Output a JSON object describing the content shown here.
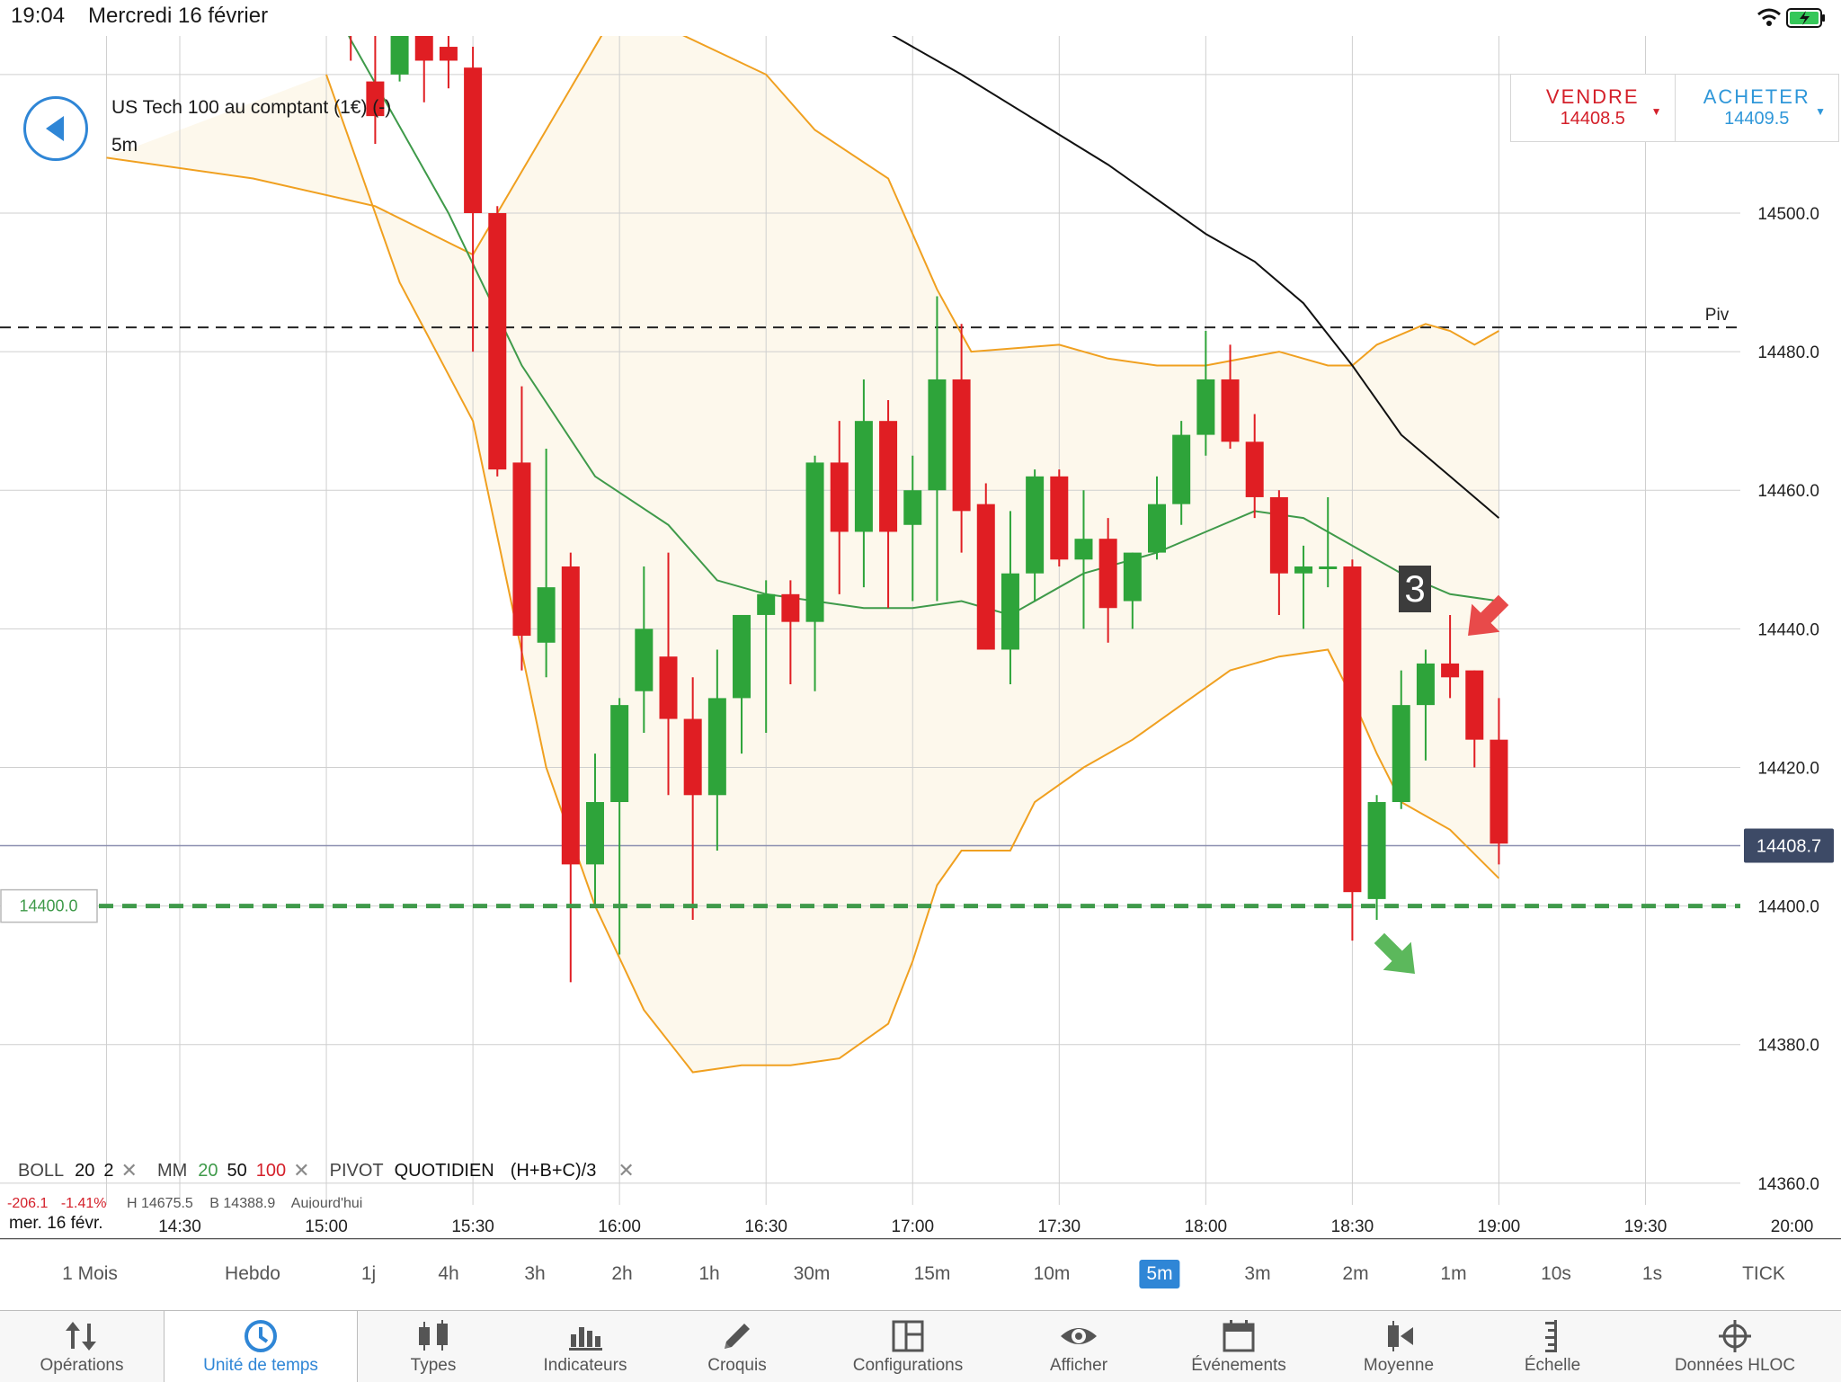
{
  "status": {
    "time": "19:04",
    "date": "Mercredi 16 février"
  },
  "header": {
    "instrument": "US Tech 100 au comptant (1€) (-)",
    "timeframe": "5m"
  },
  "trade": {
    "sell_label": "VENDRE",
    "sell_price": "14408.5",
    "buy_label": "ACHETER",
    "buy_price": "14409.5"
  },
  "chart_data": {
    "type": "candlestick",
    "instrument": "US Tech 100 au comptant (1€) (-)",
    "interval": "5m",
    "ylim": [
      14355,
      14530
    ],
    "y_ticks": [
      14500,
      14480,
      14460,
      14440,
      14420,
      14400,
      14380,
      14360
    ],
    "y_tick_labels": [
      "14500.0",
      "14480.0",
      "14460.0",
      "14440.0",
      "14420.0",
      "14400.0",
      "14380.0",
      "14360.0"
    ],
    "x_ticks": [
      "14:30",
      "15:00",
      "15:30",
      "16:00",
      "16:30",
      "17:00",
      "17:30",
      "18:00",
      "18:30",
      "19:00",
      "19:30",
      "20:00"
    ],
    "x_tick_minutes": [
      870,
      900,
      930,
      960,
      990,
      1020,
      1050,
      1080,
      1110,
      1140,
      1170,
      1200
    ],
    "candles": [
      {
        "t": 905,
        "o": 14530,
        "h": 14535,
        "l": 14522,
        "c": 14526
      },
      {
        "t": 910,
        "o": 14519,
        "h": 14528,
        "l": 14510,
        "c": 14514
      },
      {
        "t": 915,
        "o": 14520,
        "h": 14532,
        "l": 14519,
        "c": 14529
      },
      {
        "t": 920,
        "o": 14530,
        "h": 14534,
        "l": 14516,
        "c": 14522
      },
      {
        "t": 925,
        "o": 14524,
        "h": 14530,
        "l": 14518,
        "c": 14522
      },
      {
        "t": 930,
        "o": 14521,
        "h": 14524,
        "l": 14480,
        "c": 14500
      },
      {
        "t": 935,
        "o": 14500,
        "h": 14501,
        "l": 14462,
        "c": 14463
      },
      {
        "t": 940,
        "o": 14464,
        "h": 14475,
        "l": 14434,
        "c": 14439
      },
      {
        "t": 945,
        "o": 14438,
        "h": 14466,
        "l": 14433,
        "c": 14446
      },
      {
        "t": 950,
        "o": 14449,
        "h": 14451,
        "l": 14389,
        "c": 14406
      },
      {
        "t": 955,
        "o": 14406,
        "h": 14422,
        "l": 14400,
        "c": 14415
      },
      {
        "t": 960,
        "o": 14415,
        "h": 14430,
        "l": 14393,
        "c": 14429
      },
      {
        "t": 965,
        "o": 14431,
        "h": 14449,
        "l": 14425,
        "c": 14440
      },
      {
        "t": 970,
        "o": 14436,
        "h": 14451,
        "l": 14416,
        "c": 14427
      },
      {
        "t": 975,
        "o": 14427,
        "h": 14433,
        "l": 14398,
        "c": 14416
      },
      {
        "t": 980,
        "o": 14416,
        "h": 14437,
        "l": 14408,
        "c": 14430
      },
      {
        "t": 985,
        "o": 14430,
        "h": 14442,
        "l": 14422,
        "c": 14442
      },
      {
        "t": 990,
        "o": 14442,
        "h": 14447,
        "l": 14425,
        "c": 14445
      },
      {
        "t": 995,
        "o": 14445,
        "h": 14447,
        "l": 14432,
        "c": 14441
      },
      {
        "t": 1000,
        "o": 14441,
        "h": 14465,
        "l": 14431,
        "c": 14464
      },
      {
        "t": 1005,
        "o": 14464,
        "h": 14470,
        "l": 14445,
        "c": 14454
      },
      {
        "t": 1010,
        "o": 14454,
        "h": 14476,
        "l": 14446,
        "c": 14470
      },
      {
        "t": 1015,
        "o": 14470,
        "h": 14473,
        "l": 14443,
        "c": 14454
      },
      {
        "t": 1020,
        "o": 14455,
        "h": 14465,
        "l": 14444,
        "c": 14460
      },
      {
        "t": 1025,
        "o": 14460,
        "h": 14488,
        "l": 14444,
        "c": 14476
      },
      {
        "t": 1030,
        "o": 14476,
        "h": 14484,
        "l": 14451,
        "c": 14457
      },
      {
        "t": 1035,
        "o": 14458,
        "h": 14461,
        "l": 14437,
        "c": 14437
      },
      {
        "t": 1040,
        "o": 14437,
        "h": 14457,
        "l": 14432,
        "c": 14448
      },
      {
        "t": 1045,
        "o": 14448,
        "h": 14463,
        "l": 14444,
        "c": 14462
      },
      {
        "t": 1050,
        "o": 14462,
        "h": 14463,
        "l": 14449,
        "c": 14450
      },
      {
        "t": 1055,
        "o": 14450,
        "h": 14460,
        "l": 14440,
        "c": 14453
      },
      {
        "t": 1060,
        "o": 14453,
        "h": 14456,
        "l": 14438,
        "c": 14443
      },
      {
        "t": 1065,
        "o": 14444,
        "h": 14451,
        "l": 14440,
        "c": 14451
      },
      {
        "t": 1070,
        "o": 14451,
        "h": 14462,
        "l": 14450,
        "c": 14458
      },
      {
        "t": 1075,
        "o": 14458,
        "h": 14470,
        "l": 14455,
        "c": 14468
      },
      {
        "t": 1080,
        "o": 14468,
        "h": 14483,
        "l": 14465,
        "c": 14476
      },
      {
        "t": 1085,
        "o": 14476,
        "h": 14481,
        "l": 14466,
        "c": 14467
      },
      {
        "t": 1090,
        "o": 14467,
        "h": 14471,
        "l": 14456,
        "c": 14459
      },
      {
        "t": 1095,
        "o": 14459,
        "h": 14460,
        "l": 14442,
        "c": 14448
      },
      {
        "t": 1100,
        "o": 14448,
        "h": 14452,
        "l": 14440,
        "c": 14449
      },
      {
        "t": 1105,
        "o": 14449,
        "h": 14459,
        "l": 14446,
        "c": 14449
      },
      {
        "t": 1110,
        "o": 14449,
        "h": 14450,
        "l": 14395,
        "c": 14402
      },
      {
        "t": 1115,
        "o": 14401,
        "h": 14416,
        "l": 14398,
        "c": 14415
      },
      {
        "t": 1120,
        "o": 14415,
        "h": 14434,
        "l": 14414,
        "c": 14429
      },
      {
        "t": 1125,
        "o": 14429,
        "h": 14437,
        "l": 14421,
        "c": 14435
      },
      {
        "t": 1130,
        "o": 14435,
        "h": 14442,
        "l": 14430,
        "c": 14433
      },
      {
        "t": 1135,
        "o": 14434,
        "h": 14434,
        "l": 14420,
        "c": 14424
      },
      {
        "t": 1140,
        "o": 14424,
        "h": 14430,
        "l": 14406,
        "c": 14409
      }
    ],
    "bollinger": {
      "period": 20,
      "stddev": 2,
      "upper": [
        [
          855,
          14508
        ],
        [
          885,
          14505
        ],
        [
          910,
          14501
        ],
        [
          930,
          14494
        ],
        [
          960,
          14530
        ],
        [
          990,
          14520
        ],
        [
          1000,
          14512
        ],
        [
          1015,
          14505
        ],
        [
          1025,
          14489
        ],
        [
          1032,
          14480
        ],
        [
          1050,
          14481
        ],
        [
          1060,
          14479
        ],
        [
          1070,
          14478
        ],
        [
          1080,
          14478
        ],
        [
          1095,
          14480
        ],
        [
          1105,
          14478
        ],
        [
          1110,
          14478
        ],
        [
          1115,
          14481
        ],
        [
          1125,
          14484
        ],
        [
          1130,
          14483
        ],
        [
          1135,
          14481
        ],
        [
          1140,
          14483
        ]
      ],
      "middle": [
        [
          895,
          14540
        ],
        [
          905,
          14525
        ],
        [
          925,
          14500
        ],
        [
          940,
          14478
        ],
        [
          955,
          14462
        ],
        [
          970,
          14455
        ],
        [
          980,
          14447
        ],
        [
          990,
          14445
        ],
        [
          1000,
          14444
        ],
        [
          1010,
          14443
        ],
        [
          1020,
          14443
        ],
        [
          1030,
          14444
        ],
        [
          1040,
          14442
        ],
        [
          1055,
          14448
        ],
        [
          1070,
          14451
        ],
        [
          1080,
          14454
        ],
        [
          1090,
          14457
        ],
        [
          1100,
          14456
        ],
        [
          1110,
          14452
        ],
        [
          1120,
          14448
        ],
        [
          1130,
          14445
        ],
        [
          1140,
          14444
        ]
      ],
      "lower": [
        [
          900,
          14520
        ],
        [
          915,
          14490
        ],
        [
          930,
          14470
        ],
        [
          945,
          14420
        ],
        [
          955,
          14400
        ],
        [
          965,
          14385
        ],
        [
          975,
          14376
        ],
        [
          985,
          14377
        ],
        [
          995,
          14377
        ],
        [
          1005,
          14378
        ],
        [
          1015,
          14383
        ],
        [
          1020,
          14392
        ],
        [
          1025,
          14403
        ],
        [
          1030,
          14408
        ],
        [
          1040,
          14408
        ],
        [
          1045,
          14415
        ],
        [
          1055,
          14420
        ],
        [
          1065,
          14424
        ],
        [
          1075,
          14429
        ],
        [
          1085,
          14434
        ],
        [
          1095,
          14436
        ],
        [
          1105,
          14437
        ],
        [
          1110,
          14430
        ],
        [
          1115,
          14422
        ],
        [
          1120,
          14415
        ],
        [
          1130,
          14411
        ],
        [
          1140,
          14404
        ]
      ]
    },
    "moving_averages": {
      "periods": [
        20,
        50,
        100
      ],
      "ma50": [
        [
          1005,
          14530
        ],
        [
          1030,
          14520
        ],
        [
          1060,
          14507
        ],
        [
          1080,
          14497
        ],
        [
          1090,
          14493
        ],
        [
          1100,
          14487
        ],
        [
          1110,
          14478
        ],
        [
          1120,
          14468
        ],
        [
          1130,
          14462
        ],
        [
          1140,
          14456
        ]
      ]
    },
    "pivot": {
      "label": "Piv",
      "value": 14483.5
    },
    "current_price_label": "14408.7",
    "current_price": 14408.7,
    "order_level_label": "14400.0",
    "order_level": 14400.0,
    "annotation": {
      "text": "3"
    }
  },
  "legend": {
    "boll": "BOLL",
    "boll_period": "20",
    "boll_dev": "2",
    "mm": "MM",
    "mm_p1": "20",
    "mm_p2": "50",
    "mm_p3": "100",
    "pivot": "PIVOT",
    "pivot_type": "QUOTIDIEN",
    "pivot_formula": "(H+B+C)/3"
  },
  "ohlc_row": {
    "change": "-206.1",
    "change_pct": "-1.41%",
    "high": "H 14675.5",
    "low": "B 14388.9",
    "period": "Aujourd'hui"
  },
  "date_label": "mer. 16 févr.",
  "timeframes": [
    "1 Mois",
    "Hebdo",
    "1j",
    "4h",
    "3h",
    "2h",
    "1h",
    "30m",
    "15m",
    "10m",
    "5m",
    "3m",
    "2m",
    "1m",
    "10s",
    "1s",
    "TICK"
  ],
  "active_timeframe": "5m",
  "tabs": [
    {
      "label": "Opérations",
      "icon": "arrows-swap-icon"
    },
    {
      "label": "Unité de temps",
      "icon": "clock-icon"
    },
    {
      "label": "Types",
      "icon": "candles-icon"
    },
    {
      "label": "Indicateurs",
      "icon": "bar-chart-icon"
    },
    {
      "label": "Croquis",
      "icon": "pencil-icon"
    },
    {
      "label": "Configurations",
      "icon": "layout-icon"
    },
    {
      "label": "Afficher",
      "icon": "eye-icon"
    },
    {
      "label": "Événements",
      "icon": "calendar-icon"
    },
    {
      "label": "Moyenne",
      "icon": "average-icon"
    },
    {
      "label": "Échelle",
      "icon": "scale-icon"
    },
    {
      "label": "Données HLOC",
      "icon": "crosshair-icon"
    }
  ],
  "colors": {
    "up": "#2ea43a",
    "down": "#e01e23",
    "boll": "#f0a020",
    "ma20": "#3f9a4a",
    "ma50": "#111111",
    "accent": "#2f86d6"
  }
}
